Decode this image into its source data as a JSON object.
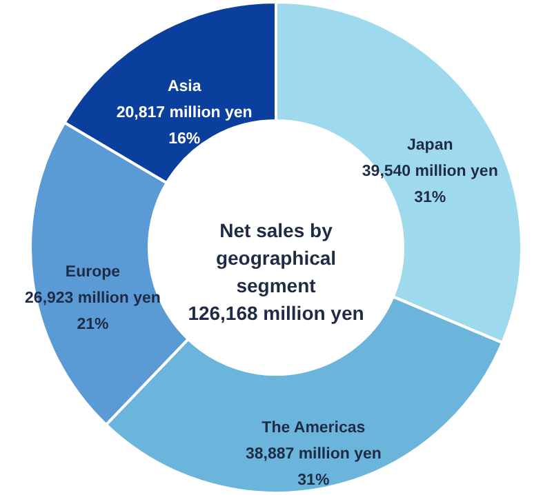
{
  "chart_data": {
    "type": "donut",
    "title": "Net sales by geographical segment",
    "subtitle": "126,168 million yen",
    "categories": [
      "Japan",
      "The Americas",
      "Europe",
      "Asia"
    ],
    "values": [
      39540,
      38887,
      26923,
      20817
    ],
    "colors": [
      "#9fd9ee",
      "#6bb5dd",
      "#5b9bd5",
      "#0b3f9e"
    ],
    "value_labels": [
      "39,540 million yen",
      "38,887 million yen",
      "26,923 million yen",
      "20,817 million yen"
    ],
    "annotations": [
      {
        "text": "31%",
        "x": "Japan"
      },
      {
        "text": "31%",
        "x": "The Americas"
      },
      {
        "text": "21%",
        "x": "Europe"
      },
      {
        "text": "16%",
        "x": "Asia"
      }
    ]
  }
}
